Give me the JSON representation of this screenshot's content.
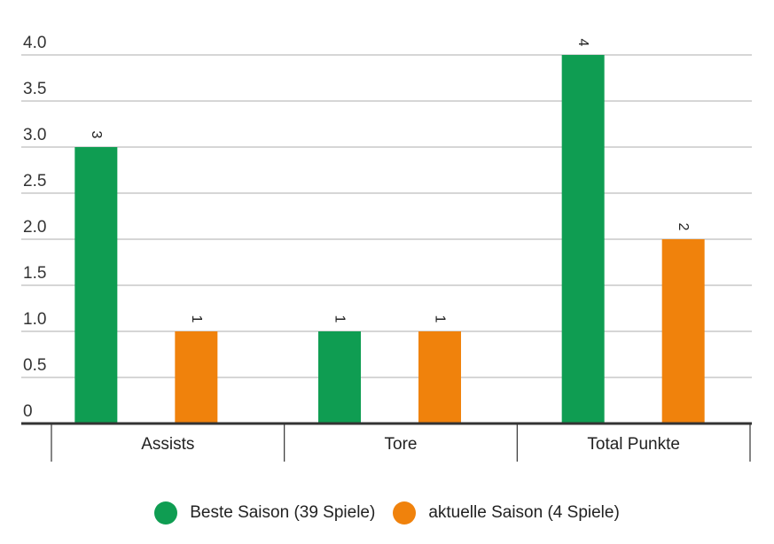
{
  "chart_data": {
    "type": "bar",
    "categories": [
      "Assists",
      "Tore",
      "Total Punkte"
    ],
    "series": [
      {
        "name": "Beste Saison (39 Spiele)",
        "values": [
          3,
          1,
          4
        ],
        "color": "#0f9d52"
      },
      {
        "name": "aktuelle Saison (4 Spiele)",
        "values": [
          1,
          1,
          2
        ],
        "color": "#f0820c"
      }
    ],
    "yticks": [
      "0",
      "0.5",
      "1.0",
      "1.5",
      "2.0",
      "2.5",
      "3.0",
      "3.5",
      "4.0"
    ],
    "ylim": [
      0,
      4
    ],
    "grid": true,
    "legend_position": "bottom",
    "data_labels": true
  },
  "legend": {
    "items": [
      {
        "label": "Beste Saison (39 Spiele)",
        "color": "#0f9d52"
      },
      {
        "label": "aktuelle Saison (4 Spiele)",
        "color": "#f0820c"
      }
    ]
  },
  "colors": {
    "grid": "#bdbdbd",
    "axis": "#333333"
  }
}
